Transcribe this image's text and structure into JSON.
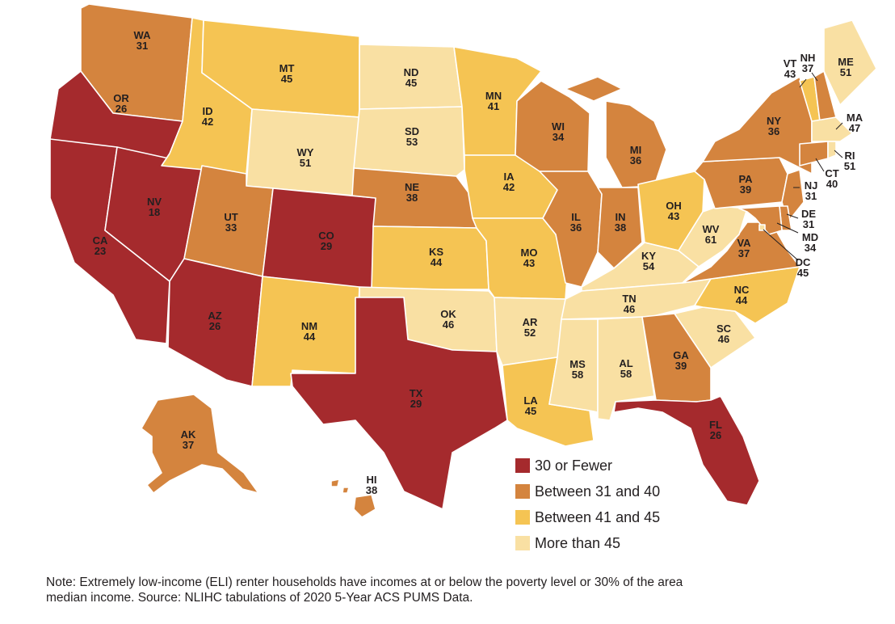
{
  "colors": {
    "low": "#a52a2d",
    "mid": "#d4843e",
    "high": "#f5c453",
    "top": "#f9e0a3"
  },
  "legend": [
    {
      "key": "low",
      "label": "30 or Fewer"
    },
    {
      "key": "mid",
      "label": "Between 31 and 40"
    },
    {
      "key": "high",
      "label": "Between 41 and 45"
    },
    {
      "key": "top",
      "label": "More than 45"
    }
  ],
  "states": {
    "WA": {
      "abbr": "WA",
      "value": "31",
      "category": "mid"
    },
    "OR": {
      "abbr": "OR",
      "value": "26",
      "category": "low"
    },
    "CA": {
      "abbr": "CA",
      "value": "23",
      "category": "low"
    },
    "NV": {
      "abbr": "NV",
      "value": "18",
      "category": "low"
    },
    "ID": {
      "abbr": "ID",
      "value": "42",
      "category": "high"
    },
    "MT": {
      "abbr": "MT",
      "value": "45",
      "category": "high"
    },
    "WY": {
      "abbr": "WY",
      "value": "51",
      "category": "top"
    },
    "UT": {
      "abbr": "UT",
      "value": "33",
      "category": "mid"
    },
    "AZ": {
      "abbr": "AZ",
      "value": "26",
      "category": "low"
    },
    "CO": {
      "abbr": "CO",
      "value": "29",
      "category": "low"
    },
    "NM": {
      "abbr": "NM",
      "value": "44",
      "category": "high"
    },
    "ND": {
      "abbr": "ND",
      "value": "45",
      "category": "top"
    },
    "SD": {
      "abbr": "SD",
      "value": "53",
      "category": "top"
    },
    "NE": {
      "abbr": "NE",
      "value": "38",
      "category": "mid"
    },
    "KS": {
      "abbr": "KS",
      "value": "44",
      "category": "high"
    },
    "OK": {
      "abbr": "OK",
      "value": "46",
      "category": "top"
    },
    "TX": {
      "abbr": "TX",
      "value": "29",
      "category": "low"
    },
    "MN": {
      "abbr": "MN",
      "value": "41",
      "category": "high"
    },
    "IA": {
      "abbr": "IA",
      "value": "42",
      "category": "high"
    },
    "MO": {
      "abbr": "MO",
      "value": "43",
      "category": "high"
    },
    "AR": {
      "abbr": "AR",
      "value": "52",
      "category": "top"
    },
    "LA": {
      "abbr": "LA",
      "value": "45",
      "category": "high"
    },
    "WI": {
      "abbr": "WI",
      "value": "34",
      "category": "mid"
    },
    "IL": {
      "abbr": "IL",
      "value": "36",
      "category": "mid"
    },
    "MI": {
      "abbr": "MI",
      "value": "36",
      "category": "mid"
    },
    "IN": {
      "abbr": "IN",
      "value": "38",
      "category": "mid"
    },
    "OH": {
      "abbr": "OH",
      "value": "43",
      "category": "high"
    },
    "KY": {
      "abbr": "KY",
      "value": "54",
      "category": "top"
    },
    "TN": {
      "abbr": "TN",
      "value": "46",
      "category": "top"
    },
    "MS": {
      "abbr": "MS",
      "value": "58",
      "category": "top"
    },
    "AL": {
      "abbr": "AL",
      "value": "58",
      "category": "top"
    },
    "GA": {
      "abbr": "GA",
      "value": "39",
      "category": "mid"
    },
    "FL": {
      "abbr": "FL",
      "value": "26",
      "category": "low"
    },
    "SC": {
      "abbr": "SC",
      "value": "46",
      "category": "top"
    },
    "NC": {
      "abbr": "NC",
      "value": "44",
      "category": "high"
    },
    "VA": {
      "abbr": "VA",
      "value": "37",
      "category": "mid"
    },
    "WV": {
      "abbr": "WV",
      "value": "61",
      "category": "top"
    },
    "PA": {
      "abbr": "PA",
      "value": "39",
      "category": "mid"
    },
    "NY": {
      "abbr": "NY",
      "value": "36",
      "category": "mid"
    },
    "VT": {
      "abbr": "VT",
      "value": "43",
      "category": "high"
    },
    "NH": {
      "abbr": "NH",
      "value": "37",
      "category": "mid"
    },
    "ME": {
      "abbr": "ME",
      "value": "51",
      "category": "top"
    },
    "MA": {
      "abbr": "MA",
      "value": "47",
      "category": "top"
    },
    "RI": {
      "abbr": "RI",
      "value": "51",
      "category": "top"
    },
    "CT": {
      "abbr": "CT",
      "value": "40",
      "category": "mid"
    },
    "NJ": {
      "abbr": "NJ",
      "value": "31",
      "category": "mid"
    },
    "DE": {
      "abbr": "DE",
      "value": "31",
      "category": "mid"
    },
    "MD": {
      "abbr": "MD",
      "value": "34",
      "category": "mid"
    },
    "DC": {
      "abbr": "DC",
      "value": "45",
      "category": "top"
    },
    "AK": {
      "abbr": "AK",
      "value": "37",
      "category": "mid"
    },
    "HI": {
      "abbr": "HI",
      "value": "38",
      "category": "mid"
    }
  },
  "note": "Note: Extremely low-income (ELI) renter households have incomes at or below the poverty level or 30% of the area median income. Source: NLIHC tabulations of 2020 5-Year ACS PUMS Data."
}
